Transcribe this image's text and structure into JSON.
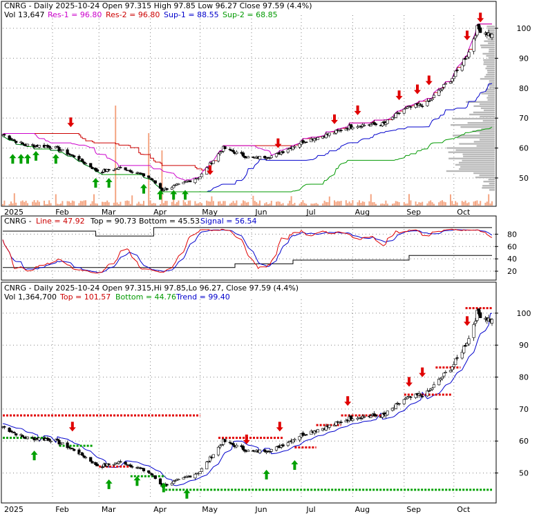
{
  "colors": {
    "up": "#00a000",
    "down": "#e00000",
    "res1": "#cc00cc",
    "res2": "#cc0000",
    "sup1": "#0000cc",
    "sup2": "#009900",
    "volume": "#f4a582",
    "grid": "#808080",
    "frame": "#000000",
    "profile": "#b8b8b8",
    "top_line": "#000000"
  },
  "panel1": {
    "header_line1": "CNRG - Daily 2025-10-24 Open 97.315  High 97.85  Low 96.27  Close 97.59 (4.4%)",
    "vol_label": "Vol 13,647",
    "res1_label": "Res-1 = 96.80",
    "res2_label": "Res-2 = 96.80",
    "sup1_label": "Sup-1 = 88.55",
    "sup2_label": "Sup-2 = 68.85"
  },
  "panel2": {
    "header_name": "CNRG - ",
    "line_label": "Line = 47.92",
    "top_label": "Top = 90.73",
    "bottom_label": "Bottom = 45.53",
    "signal_label": "Signal = 56.54"
  },
  "panel3": {
    "header_line1": "CNRG - Daily 2025-10-24 Open 97.315,Hi 97.85,Lo 96.27, Close 97.59 (4.4%)",
    "vol_label": "Vol 1,364,700",
    "top_label": "Top = 101.57",
    "bottom_label": "Bottom = 44.76",
    "trend_label": "Trend = 99.40"
  },
  "chart_data": [
    {
      "type": "candlestick",
      "panel": "price-with-volume",
      "x_labels": [
        "2025",
        "Feb",
        "Mar",
        "Apr",
        "May",
        "Jun",
        "Jul",
        "Aug",
        "Sep",
        "Oct"
      ],
      "y_ticks": [
        50,
        60,
        70,
        80,
        90,
        100
      ],
      "ylim": [
        44,
        103
      ],
      "grid": true,
      "series": [
        {
          "name": "Res-1",
          "last": 96.8
        },
        {
          "name": "Res-2",
          "last": 96.8
        },
        {
          "name": "Sup-1",
          "last": 88.55
        },
        {
          "name": "Sup-2",
          "last": 68.85
        }
      ],
      "price_path": [
        {
          "x": "2025-01-02",
          "y": 64.5
        },
        {
          "x": "2025-01-15",
          "y": 61.0
        },
        {
          "x": "2025-02-01",
          "y": 60.5
        },
        {
          "x": "2025-02-15",
          "y": 57.0
        },
        {
          "x": "2025-03-01",
          "y": 52.0
        },
        {
          "x": "2025-03-15",
          "y": 53.5
        },
        {
          "x": "2025-04-01",
          "y": 50.0
        },
        {
          "x": "2025-04-08",
          "y": 46.0
        },
        {
          "x": "2025-04-20",
          "y": 48.0
        },
        {
          "x": "2025-05-01",
          "y": 50.5
        },
        {
          "x": "2025-05-15",
          "y": 60.0
        },
        {
          "x": "2025-06-01",
          "y": 56.5
        },
        {
          "x": "2025-06-15",
          "y": 57.5
        },
        {
          "x": "2025-07-01",
          "y": 62.0
        },
        {
          "x": "2025-07-20",
          "y": 65.0
        },
        {
          "x": "2025-08-01",
          "y": 67.5
        },
        {
          "x": "2025-08-20",
          "y": 68.0
        },
        {
          "x": "2025-09-01",
          "y": 73.0
        },
        {
          "x": "2025-09-15",
          "y": 75.0
        },
        {
          "x": "2025-10-01",
          "y": 84.0
        },
        {
          "x": "2025-10-10",
          "y": 92.0
        },
        {
          "x": "2025-10-15",
          "y": 100.0
        },
        {
          "x": "2025-10-24",
          "y": 97.59
        }
      ],
      "legend": "top-left"
    },
    {
      "type": "line",
      "panel": "oscillator",
      "y_ticks": [
        20,
        40,
        60,
        80
      ],
      "ylim": [
        10,
        95
      ],
      "series": [
        {
          "name": "Line",
          "last": 47.92
        },
        {
          "name": "Signal",
          "last": 56.54
        },
        {
          "name": "Top",
          "last": 90.73
        },
        {
          "name": "Bottom",
          "last": 45.53
        }
      ]
    },
    {
      "type": "candlestick",
      "panel": "price-with-trend",
      "x_labels": [
        "2025",
        "Feb",
        "Mar",
        "Apr",
        "May",
        "Jun",
        "Jul",
        "Aug",
        "Sep",
        "Oct"
      ],
      "y_ticks": [
        50,
        60,
        70,
        80,
        90,
        100
      ],
      "ylim": [
        43,
        103
      ],
      "grid": true,
      "series": [
        {
          "name": "Top",
          "last": 101.57
        },
        {
          "name": "Bottom",
          "last": 44.76
        },
        {
          "name": "Trend",
          "last": 99.4
        }
      ]
    }
  ]
}
